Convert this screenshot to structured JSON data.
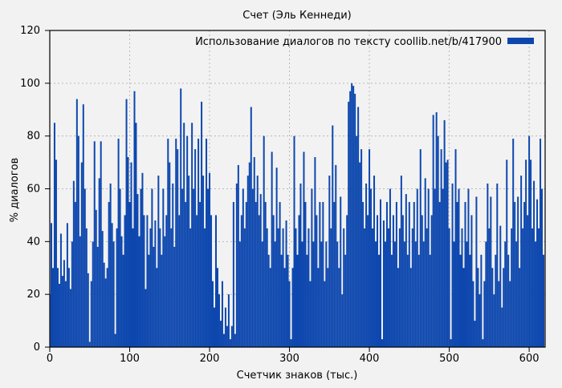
{
  "page": {
    "background": "#f2f2f2"
  },
  "chart_data": {
    "type": "bar",
    "title": "Счет (Эль Кеннеди)",
    "xlabel": "Счетчик знаков (тыс.)",
    "ylabel": "% диалогов",
    "legend": {
      "label": "Использование диалогов по тексту  coollib.net/b/417900",
      "swatch_color": "#0d47ae",
      "position": "top-right-inside"
    },
    "bar_color": "#0d47ae",
    "grid": true,
    "grid_color": "#b8b8b8",
    "border_color": "#000000",
    "xlim": [
      0,
      620
    ],
    "ylim": [
      0,
      120
    ],
    "x_ticks": [
      0,
      100,
      200,
      300,
      400,
      500,
      600
    ],
    "y_ticks": [
      0,
      20,
      40,
      60,
      80,
      100,
      120
    ],
    "x_start": 0,
    "x_step": 2,
    "values": [
      20,
      47,
      30,
      85,
      71,
      30,
      24,
      43,
      27,
      33,
      25,
      47,
      30,
      22,
      40,
      63,
      55,
      94,
      80,
      42,
      70,
      92,
      60,
      45,
      28,
      2,
      25,
      40,
      78,
      52,
      38,
      64,
      78,
      44,
      32,
      26,
      30,
      55,
      62,
      47,
      40,
      5,
      45,
      79,
      60,
      42,
      35,
      50,
      94,
      72,
      55,
      70,
      45,
      97,
      85,
      58,
      42,
      60,
      66,
      50,
      22,
      50,
      35,
      45,
      60,
      38,
      48,
      30,
      65,
      45,
      35,
      60,
      42,
      50,
      79,
      70,
      45,
      62,
      38,
      79,
      75,
      50,
      98,
      60,
      85,
      55,
      80,
      65,
      45,
      85,
      60,
      75,
      50,
      79,
      55,
      93,
      65,
      45,
      79,
      60,
      66,
      50,
      25,
      15,
      50,
      30,
      20,
      10,
      25,
      5,
      15,
      8,
      20,
      3,
      8,
      55,
      5,
      62,
      69,
      40,
      50,
      60,
      45,
      55,
      65,
      70,
      91,
      60,
      72,
      55,
      65,
      50,
      58,
      40,
      80,
      55,
      45,
      35,
      30,
      74,
      50,
      40,
      68,
      45,
      55,
      35,
      45,
      30,
      48,
      35,
      25,
      3,
      30,
      80,
      45,
      35,
      50,
      62,
      40,
      74,
      55,
      35,
      45,
      25,
      60,
      40,
      72,
      50,
      30,
      55,
      40,
      55,
      25,
      40,
      30,
      65,
      45,
      84,
      55,
      69,
      40,
      30,
      57,
      20,
      45,
      35,
      50,
      93,
      97,
      100,
      99,
      96,
      80,
      91,
      70,
      75,
      55,
      45,
      62,
      50,
      75,
      60,
      45,
      65,
      40,
      50,
      35,
      56,
      3,
      48,
      40,
      55,
      45,
      60,
      35,
      50,
      40,
      55,
      30,
      45,
      65,
      50,
      40,
      58,
      35,
      55,
      30,
      45,
      55,
      40,
      60,
      35,
      75,
      50,
      40,
      64,
      45,
      60,
      35,
      50,
      88,
      60,
      89,
      80,
      55,
      75,
      60,
      86,
      70,
      71,
      45,
      3,
      62,
      40,
      75,
      55,
      60,
      35,
      45,
      30,
      55,
      40,
      60,
      35,
      50,
      25,
      10,
      57,
      30,
      20,
      35,
      3,
      25,
      40,
      62,
      45,
      57,
      30,
      20,
      35,
      62,
      25,
      46,
      15,
      30,
      40,
      71,
      35,
      25,
      45,
      79,
      55,
      40,
      57,
      30,
      65,
      45,
      55,
      71,
      50,
      80,
      71,
      45,
      63,
      40,
      56,
      45,
      79,
      60,
      35
    ]
  }
}
